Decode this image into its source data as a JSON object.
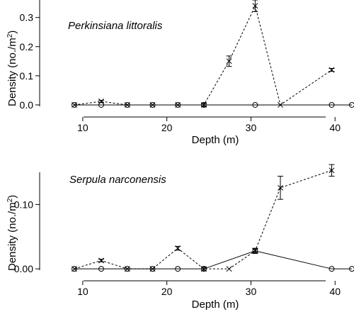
{
  "chart_data": [
    {
      "type": "line",
      "title": "Perkinsiana littoralis",
      "xlabel": "Depth (m)",
      "ylabel": "Density (no./m",
      "ylabel_sup": "2",
      "ylabel_close": ")",
      "xlim": [
        9,
        42
      ],
      "ylim": [
        -0.005,
        0.36
      ],
      "xticks": [
        10,
        20,
        30,
        40
      ],
      "yticks": [
        0.0,
        0.1,
        0.2,
        0.3
      ],
      "ytick_labels": [
        "0.0",
        "0.1",
        "0.2",
        "0.3"
      ],
      "grid": false,
      "series": [
        {
          "marker": "circle",
          "style": "solid",
          "points": [
            [
              9,
              0
            ],
            [
              12.2,
              0
            ],
            [
              15.3,
              0
            ],
            [
              18.3,
              0
            ],
            [
              21.3,
              0
            ],
            [
              24.4,
              0
            ],
            [
              30.5,
              0
            ],
            [
              39.6,
              0
            ],
            [
              42,
              0
            ]
          ],
          "errors": [
            0,
            0,
            0,
            0,
            0,
            0,
            0,
            0,
            0
          ]
        },
        {
          "marker": "cross",
          "style": "dashed",
          "points": [
            [
              9,
              0
            ],
            [
              12.2,
              0.012
            ],
            [
              15.3,
              0
            ],
            [
              18.3,
              0
            ],
            [
              21.3,
              0
            ],
            [
              24.4,
              0
            ],
            [
              27.4,
              0.15
            ],
            [
              30.5,
              0.34
            ],
            [
              33.5,
              0
            ],
            [
              39.6,
              0.12
            ]
          ],
          "errors": [
            0,
            0.004,
            0,
            0,
            0,
            0.006,
            0.018,
            0.02,
            0,
            0.005
          ]
        }
      ]
    },
    {
      "type": "line",
      "title": "Serpula narconensis",
      "xlabel": "Depth (m)",
      "ylabel": "Density (no./m",
      "ylabel_sup": "2",
      "ylabel_close": ")",
      "xlim": [
        9,
        42
      ],
      "ylim": [
        -0.002,
        0.15
      ],
      "xticks": [
        10,
        20,
        30,
        40
      ],
      "yticks": [
        0.0,
        0.1
      ],
      "ytick_labels": [
        "0.00",
        "0.10"
      ],
      "grid": false,
      "series": [
        {
          "marker": "circle",
          "style": "solid",
          "points": [
            [
              9,
              0
            ],
            [
              12.2,
              0
            ],
            [
              15.3,
              0
            ],
            [
              18.3,
              0
            ],
            [
              21.3,
              0
            ],
            [
              24.4,
              0
            ],
            [
              30.5,
              0.028
            ],
            [
              39.6,
              0
            ],
            [
              42,
              0
            ]
          ],
          "errors": [
            0,
            0,
            0,
            0,
            0,
            0,
            0.003,
            0,
            0
          ]
        },
        {
          "marker": "cross",
          "style": "dashed",
          "points": [
            [
              9,
              0
            ],
            [
              12.2,
              0.013
            ],
            [
              15.3,
              0
            ],
            [
              18.3,
              0
            ],
            [
              21.3,
              0.032
            ],
            [
              24.4,
              0
            ],
            [
              27.4,
              0
            ],
            [
              30.5,
              0.028
            ],
            [
              33.5,
              0.126
            ],
            [
              39.6,
              0.153
            ]
          ],
          "errors": [
            0,
            0.002,
            0,
            0,
            0.003,
            0.003,
            0,
            0.004,
            0.018,
            0.009
          ]
        }
      ]
    }
  ]
}
